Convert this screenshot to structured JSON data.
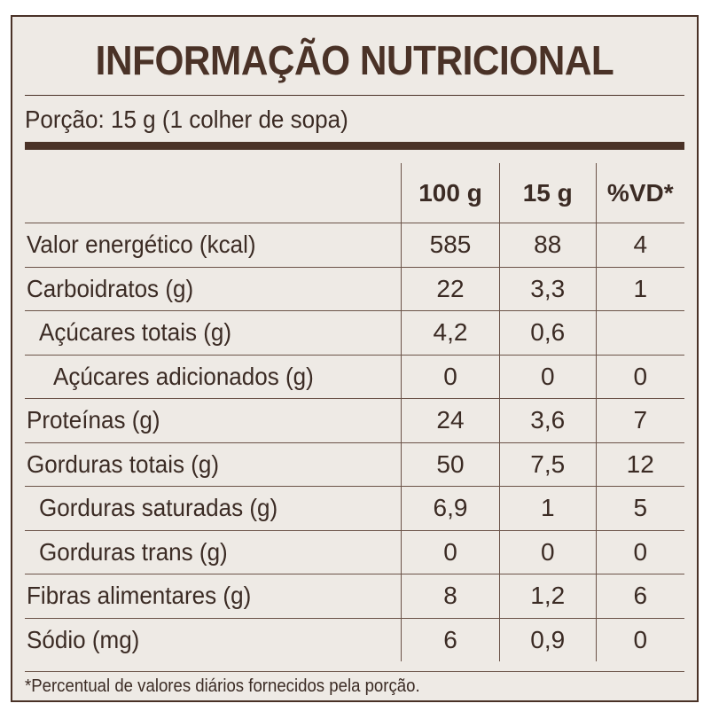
{
  "title": "INFORMAÇÃO NUTRICIONAL",
  "portion": "Porção: 15 g (1 colher de sopa)",
  "columns": [
    "",
    "100 g",
    "15 g",
    "%VD*"
  ],
  "rows": [
    {
      "label": "Valor energético (kcal)",
      "indent": 0,
      "v100": "585",
      "v15": "88",
      "vd": "4"
    },
    {
      "label": "Carboidratos (g)",
      "indent": 0,
      "v100": "22",
      "v15": "3,3",
      "vd": "1"
    },
    {
      "label": "Açúcares totais (g)",
      "indent": 1,
      "v100": "4,2",
      "v15": "0,6",
      "vd": ""
    },
    {
      "label": "Açúcares adicionados (g)",
      "indent": 2,
      "v100": "0",
      "v15": "0",
      "vd": "0"
    },
    {
      "label": "Proteínas (g)",
      "indent": 0,
      "v100": "24",
      "v15": "3,6",
      "vd": "7"
    },
    {
      "label": "Gorduras totais (g)",
      "indent": 0,
      "v100": "50",
      "v15": "7,5",
      "vd": "12"
    },
    {
      "label": "Gorduras saturadas (g)",
      "indent": 1,
      "v100": "6,9",
      "v15": "1",
      "vd": "5"
    },
    {
      "label": "Gorduras trans (g)",
      "indent": 1,
      "v100": "0",
      "v15": "0",
      "vd": "0"
    },
    {
      "label": "Fibras alimentares (g)",
      "indent": 0,
      "v100": "8",
      "v15": "1,2",
      "vd": "6"
    },
    {
      "label": "Sódio (mg)",
      "indent": 0,
      "v100": "6",
      "v15": "0,9",
      "vd": "0"
    }
  ],
  "footnote": "*Percentual de valores diários fornecidos pela porção.",
  "colors": {
    "background": "#eeeae5",
    "border": "#4a3227",
    "text": "#3b2b24"
  }
}
